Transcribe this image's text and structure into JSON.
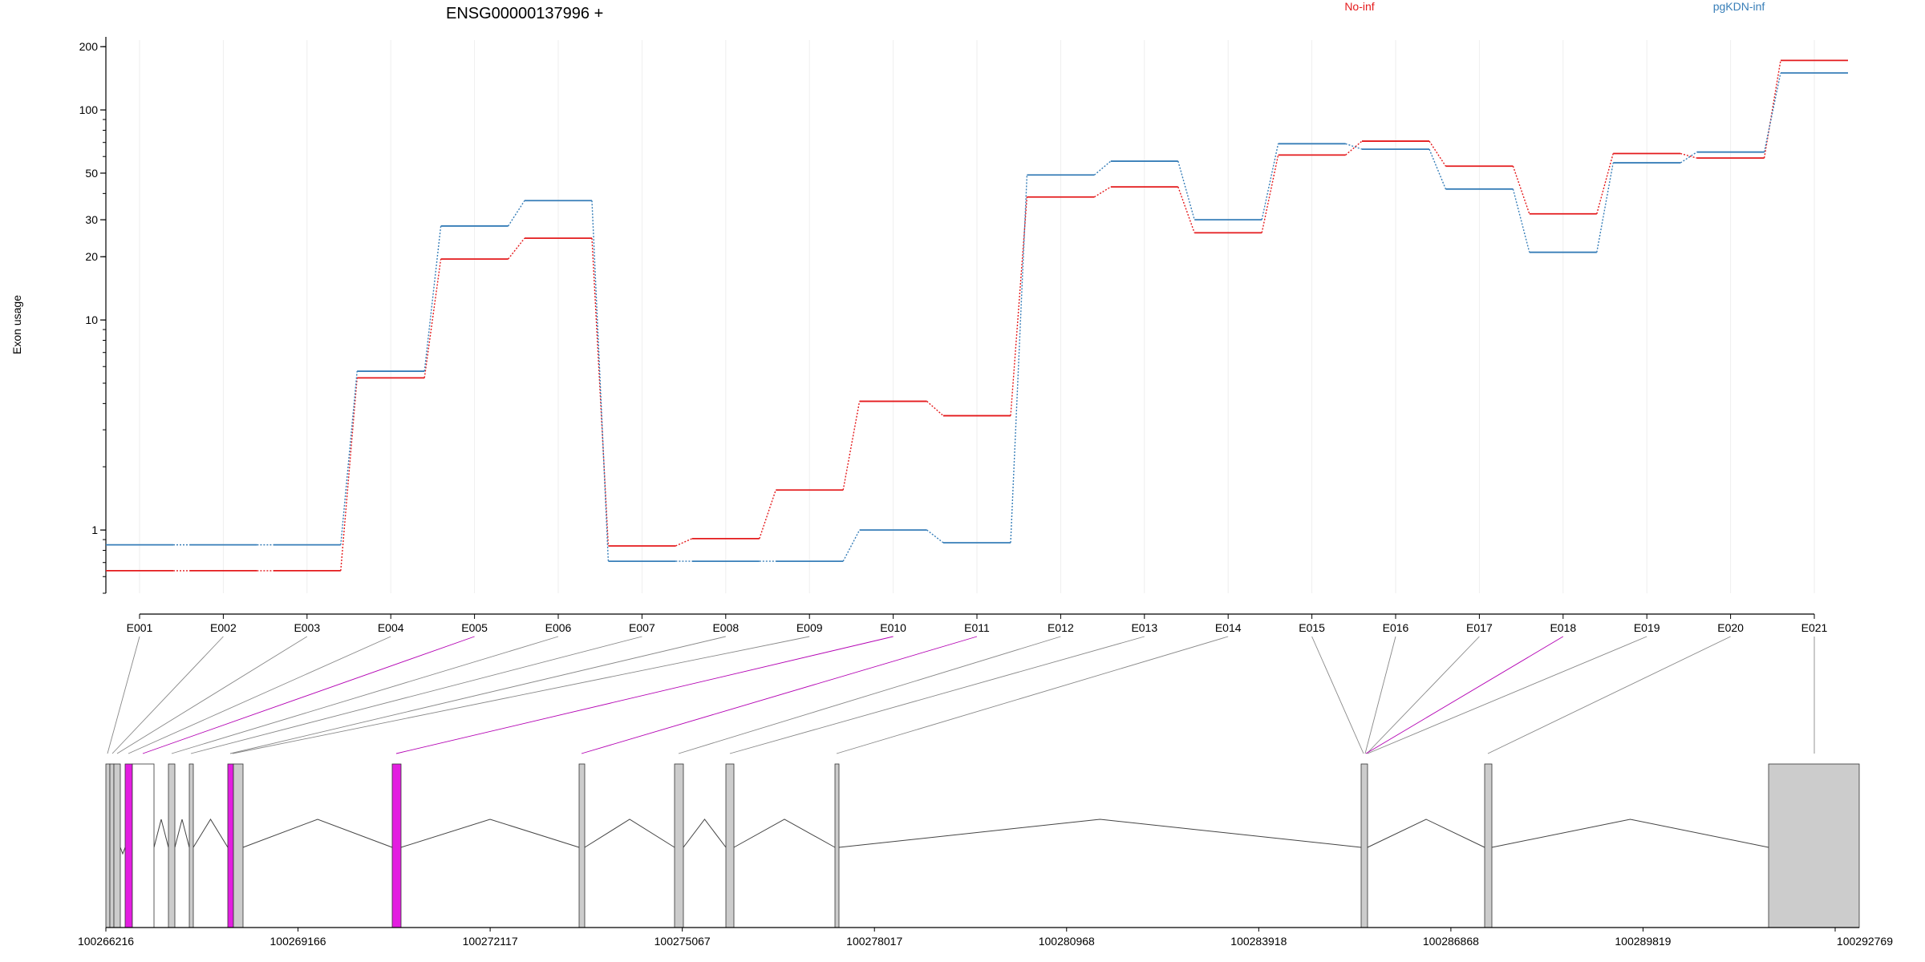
{
  "chart_data": {
    "type": "line",
    "title": "ENSG00000137996 +",
    "ylabel": "Exon usage",
    "xlabel": "",
    "yscale": "log",
    "ylim": [
      0.5,
      215
    ],
    "yticks": [
      1,
      10,
      20,
      30,
      50,
      100,
      200
    ],
    "grid": "vertical",
    "legend_position": "top",
    "categories": [
      "E001",
      "E002",
      "E003",
      "E004",
      "E005",
      "E006",
      "E007",
      "E008",
      "E009",
      "E010",
      "E011",
      "E012",
      "E013",
      "E014",
      "E015",
      "E016",
      "E017",
      "E018",
      "E019",
      "E020",
      "E021"
    ],
    "series": [
      {
        "name": "No-inf",
        "color": "#e41a1c",
        "values": [
          0.64,
          0.64,
          0.64,
          5.3,
          19.5,
          24.5,
          0.84,
          0.91,
          1.55,
          4.1,
          3.5,
          38.5,
          43,
          26,
          61,
          71,
          54,
          32,
          62,
          59,
          172
        ]
      },
      {
        "name": "pgKDN-inf",
        "color": "#377eb8",
        "values": [
          0.85,
          0.85,
          0.85,
          5.7,
          28,
          37,
          0.71,
          0.71,
          0.71,
          1.0,
          0.87,
          49,
          57,
          30,
          69,
          65,
          42,
          21,
          56,
          63,
          150
        ]
      }
    ],
    "gene_model": {
      "coordinate_ticks": [
        "100266216",
        "100269166",
        "100272117",
        "100275067",
        "100278017",
        "100280968",
        "100283918",
        "100286868",
        "100289819",
        "100292769"
      ],
      "highlight_color": "#e31ee0",
      "exon_color": "#cccccc"
    }
  }
}
